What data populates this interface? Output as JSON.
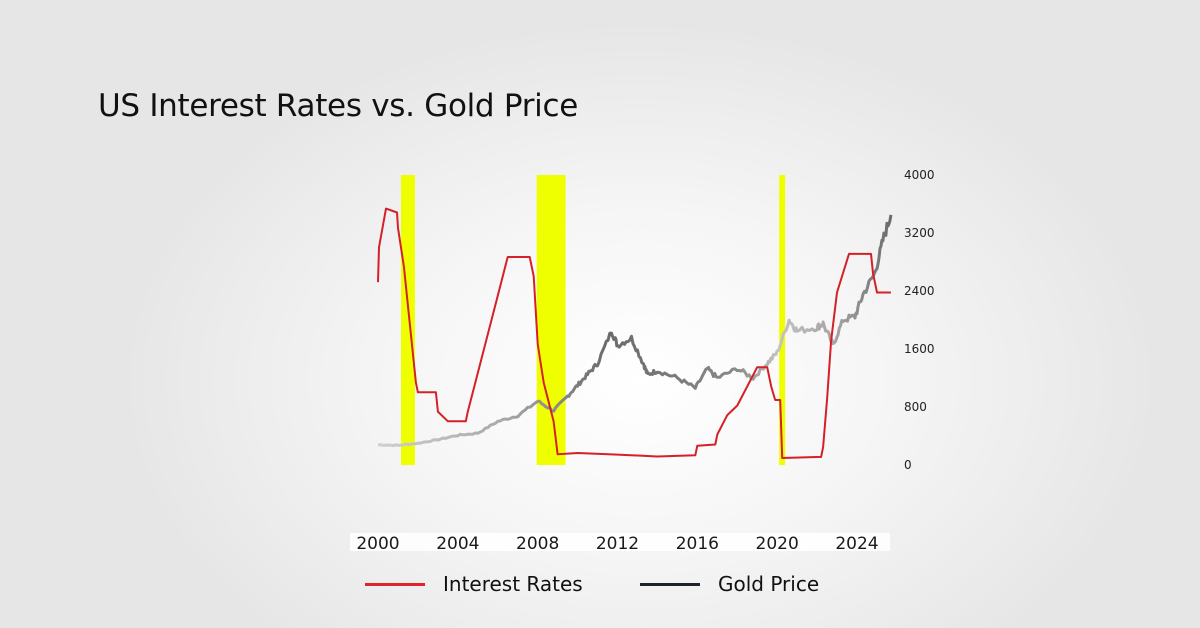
{
  "title": "US Interest Rates vs. Gold Price",
  "chart_data": {
    "type": "line",
    "title": "US Interest Rates vs. Gold Price",
    "x_ticks": [
      "2000",
      "2004",
      "2008",
      "2012",
      "2016",
      "2020",
      "2024"
    ],
    "xlim": [
      2000,
      2025.7
    ],
    "y_right_ticks": [
      "0",
      "800",
      "1600",
      "2400",
      "3200",
      "4000"
    ],
    "ylim": [
      0,
      4000
    ],
    "rate_ylim": [
      -0.13,
      7.37
    ],
    "legend": "bottom",
    "grid": false,
    "shaded_periods": [
      [
        2001.15,
        2001.85
      ],
      [
        2007.95,
        2009.4
      ],
      [
        2020.1,
        2020.4
      ]
    ],
    "shade_color": "#f0ff00",
    "series": [
      {
        "name": "Interest Rates",
        "color": "#d42027",
        "axis": "hidden",
        "x": [
          2000.0,
          2000.05,
          2000.4,
          2000.95,
          2001.0,
          2001.3,
          2001.5,
          2001.7,
          2001.9,
          2002.0,
          2002.9,
          2003.0,
          2003.5,
          2004.4,
          2004.5,
          2005.0,
          2005.5,
          2006.0,
          2006.5,
          2007.6,
          2007.8,
          2008.0,
          2008.3,
          2008.8,
          2009.0,
          2010.0,
          2012.0,
          2014.0,
          2015.9,
          2016.0,
          2016.9,
          2017.0,
          2017.5,
          2018.0,
          2018.5,
          2019.0,
          2019.5,
          2019.7,
          2019.9,
          2020.15,
          2020.25,
          2022.2,
          2022.3,
          2022.5,
          2022.7,
          2023.0,
          2023.3,
          2023.6,
          2024.7,
          2024.8,
          2025.0,
          2025.7
        ],
        "y": [
          4.6,
          5.5,
          6.5,
          6.4,
          6.0,
          5.0,
          4.0,
          3.0,
          2.0,
          1.75,
          1.75,
          1.25,
          1.0,
          1.0,
          1.25,
          2.25,
          3.25,
          4.25,
          5.25,
          5.25,
          4.75,
          3.0,
          2.0,
          1.0,
          0.15,
          0.18,
          0.14,
          0.09,
          0.12,
          0.37,
          0.4,
          0.66,
          1.16,
          1.41,
          1.9,
          2.4,
          2.4,
          1.9,
          1.55,
          1.55,
          0.05,
          0.08,
          0.33,
          1.58,
          3.08,
          4.33,
          4.83,
          5.33,
          5.33,
          4.83,
          4.33,
          4.33
        ]
      },
      {
        "name": "Gold Price",
        "color": "#1e2330",
        "axis": "right",
        "x": [
          2000,
          2001,
          2002,
          2003,
          2004,
          2005,
          2006,
          2007,
          2008,
          2008.8,
          2009.5,
          2010,
          2010.5,
          2011,
          2011.7,
          2012,
          2012.7,
          2013.3,
          2013.5,
          2014,
          2015,
          2015.9,
          2016.5,
          2017,
          2018,
          2018.8,
          2019.5,
          2020.0,
          2020.6,
          2021,
          2022,
          2022.3,
          2022.8,
          2023.3,
          2023.9,
          2024.3,
          2024.9,
          2025.3,
          2025.7
        ],
        "y": [
          280,
          270,
          300,
          350,
          410,
          440,
          600,
          680,
          880,
          750,
          950,
          1100,
          1250,
          1400,
          1850,
          1650,
          1750,
          1400,
          1250,
          1300,
          1200,
          1060,
          1330,
          1200,
          1330,
          1200,
          1400,
          1550,
          2000,
          1850,
          1900,
          1950,
          1650,
          2000,
          2050,
          2350,
          2650,
          3100,
          3450
        ]
      }
    ]
  }
}
